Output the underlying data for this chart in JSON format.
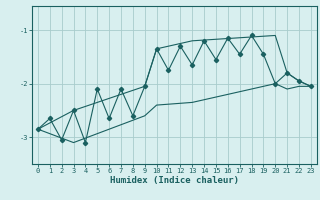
{
  "xlabel": "Humidex (Indice chaleur)",
  "bg_color": "#d8efef",
  "grid_color": "#a8cccc",
  "line_color": "#1a6060",
  "xlim": [
    -0.5,
    23.5
  ],
  "ylim": [
    -3.5,
    -0.55
  ],
  "yticks": [
    -3,
    -2,
    -1
  ],
  "xticks": [
    0,
    1,
    2,
    3,
    4,
    5,
    6,
    7,
    8,
    9,
    10,
    11,
    12,
    13,
    14,
    15,
    16,
    17,
    18,
    19,
    20,
    21,
    22,
    23
  ],
  "main_x": [
    0,
    1,
    2,
    3,
    4,
    5,
    6,
    7,
    8,
    9,
    10,
    11,
    12,
    13,
    14,
    15,
    16,
    17,
    18,
    19,
    20,
    21,
    22,
    23
  ],
  "main_y": [
    -2.85,
    -2.65,
    -3.05,
    -2.5,
    -3.1,
    -2.1,
    -2.65,
    -2.1,
    -2.6,
    -2.05,
    -1.35,
    -1.75,
    -1.3,
    -1.65,
    -1.2,
    -1.55,
    -1.15,
    -1.45,
    -1.1,
    -1.45,
    -2.0,
    -1.8,
    -1.95,
    -2.05
  ],
  "upper_x": [
    0,
    3,
    9,
    10,
    13,
    20,
    21,
    22,
    23
  ],
  "upper_y": [
    -2.85,
    -2.5,
    -2.05,
    -1.35,
    -1.2,
    -1.1,
    -1.8,
    -1.95,
    -2.05
  ],
  "lower_x": [
    0,
    3,
    9,
    10,
    13,
    20,
    21,
    22,
    23
  ],
  "lower_y": [
    -2.85,
    -3.1,
    -2.6,
    -2.4,
    -2.35,
    -2.0,
    -2.1,
    -2.05,
    -2.05
  ],
  "marker_style": "D",
  "marker_size": 2.2,
  "line_width": 0.8
}
